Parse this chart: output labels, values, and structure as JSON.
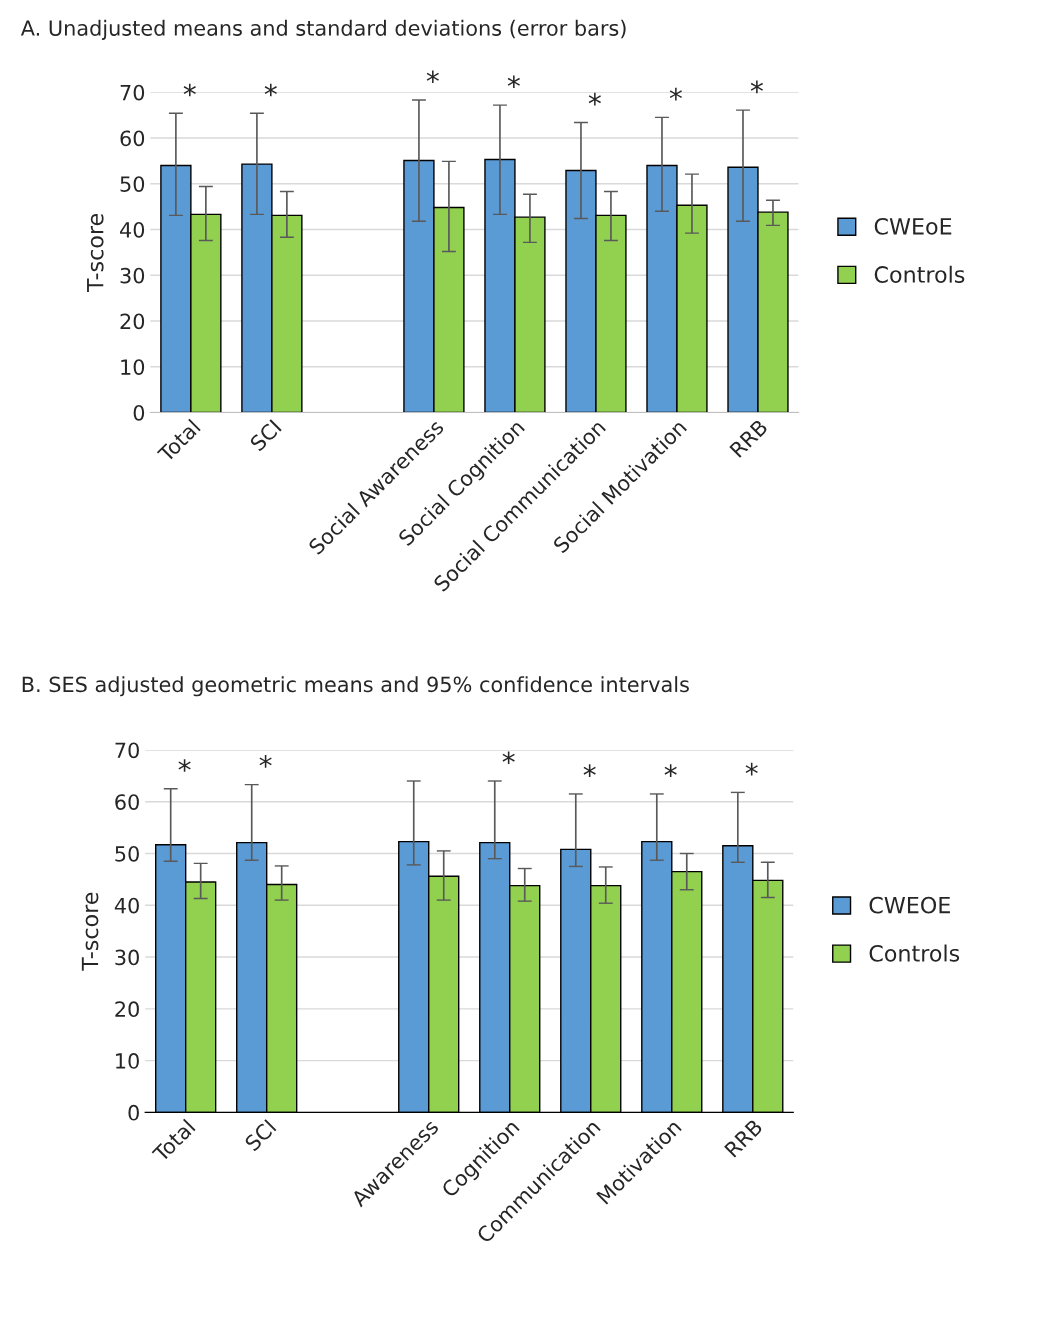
{
  "chart_data": [
    {
      "type": "bar",
      "title": "A. Unadjusted means and standard deviations (error bars)",
      "ylabel": "T-score",
      "categories": [
        "Total",
        "SCI",
        null,
        "Social Awareness",
        "Social Cognition",
        "Social Communication",
        "Social Motivation",
        "RRB"
      ],
      "series": [
        {
          "name": "CWEoE",
          "color": "#5b9bd5",
          "value_labels": [
            "*",
            "*",
            null,
            "*",
            "*",
            "*",
            "*",
            "*"
          ],
          "values": [
            54.0,
            54.3,
            null,
            55.1,
            55.3,
            52.9,
            54.0,
            53.6
          ],
          "errors": [
            [
              43.1,
              65.4
            ],
            [
              43.3,
              65.4
            ],
            null,
            [
              41.8,
              68.3
            ],
            [
              43.3,
              67.2
            ],
            [
              42.4,
              63.4
            ],
            [
              44.0,
              64.5
            ],
            [
              41.8,
              66.1
            ]
          ]
        },
        {
          "name": "Controls",
          "color": "#92d050",
          "values": [
            43.3,
            43.1,
            null,
            44.8,
            42.7,
            43.1,
            45.3,
            43.8
          ],
          "errors": [
            [
              37.6,
              49.4
            ],
            [
              38.3,
              48.3
            ],
            null,
            [
              35.2,
              54.9
            ],
            [
              37.2,
              47.7
            ],
            [
              37.6,
              48.3
            ],
            [
              39.2,
              52.1
            ],
            [
              40.9,
              46.4
            ]
          ]
        }
      ],
      "ylim": [
        0,
        70
      ],
      "yticks": [
        0,
        10,
        20,
        30,
        40,
        50,
        60,
        70
      ],
      "grid": "y",
      "legend": "right"
    },
    {
      "type": "bar",
      "title": "B. SES adjusted geometric means and 95% confidence intervals",
      "ylabel": "T-score",
      "categories": [
        "Total",
        "SCI",
        null,
        "Awareness",
        "Cognition",
        "Communication",
        "Motivation",
        "RRB"
      ],
      "series": [
        {
          "name": "CWEOE",
          "color": "#5b9bd5",
          "value_labels": [
            "*",
            "*",
            null,
            null,
            "*",
            "*",
            "*",
            "*"
          ],
          "values": [
            51.7,
            52.1,
            null,
            52.3,
            52.1,
            50.8,
            52.3,
            51.5
          ],
          "errors": [
            [
              48.5,
              62.5
            ],
            [
              48.7,
              63.3
            ],
            null,
            [
              47.8,
              64.0
            ],
            [
              49.0,
              64.0
            ],
            [
              47.5,
              61.5
            ],
            [
              48.7,
              61.5
            ],
            [
              48.3,
              61.8
            ]
          ]
        },
        {
          "name": "Controls",
          "color": "#92d050",
          "values": [
            44.5,
            44.0,
            null,
            45.6,
            43.8,
            43.8,
            46.5,
            44.8
          ],
          "errors": [
            [
              41.3,
              48.1
            ],
            [
              41.0,
              47.6
            ],
            null,
            [
              41.0,
              50.5
            ],
            [
              40.8,
              47.1
            ],
            [
              40.4,
              47.4
            ],
            [
              43.0,
              50.0
            ],
            [
              41.5,
              48.3
            ]
          ]
        }
      ],
      "ylim": [
        0,
        70
      ],
      "yticks": [
        0,
        10,
        20,
        30,
        40,
        50,
        60,
        70
      ],
      "grid": "y",
      "legend": "right"
    }
  ]
}
